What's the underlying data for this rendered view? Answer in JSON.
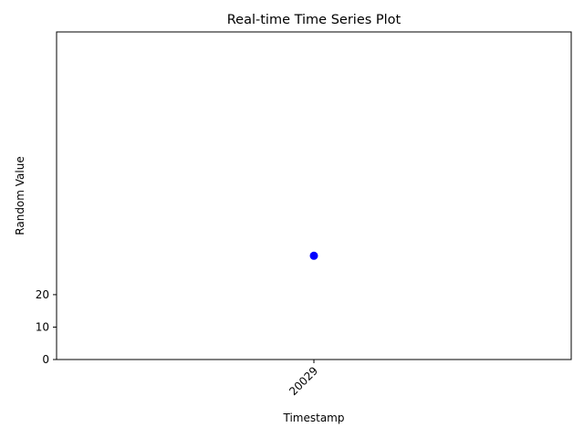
{
  "chart_data": {
    "type": "scatter",
    "title": "Real-time Time Series Plot",
    "xlabel": "Timestamp",
    "ylabel": "Random Value",
    "x": [
      "20029"
    ],
    "y": [
      32
    ],
    "marker_color": "#0000ff",
    "yticks": [
      0,
      10,
      20
    ],
    "ylim": [
      0,
      101
    ],
    "grid": false,
    "legend": "none"
  }
}
